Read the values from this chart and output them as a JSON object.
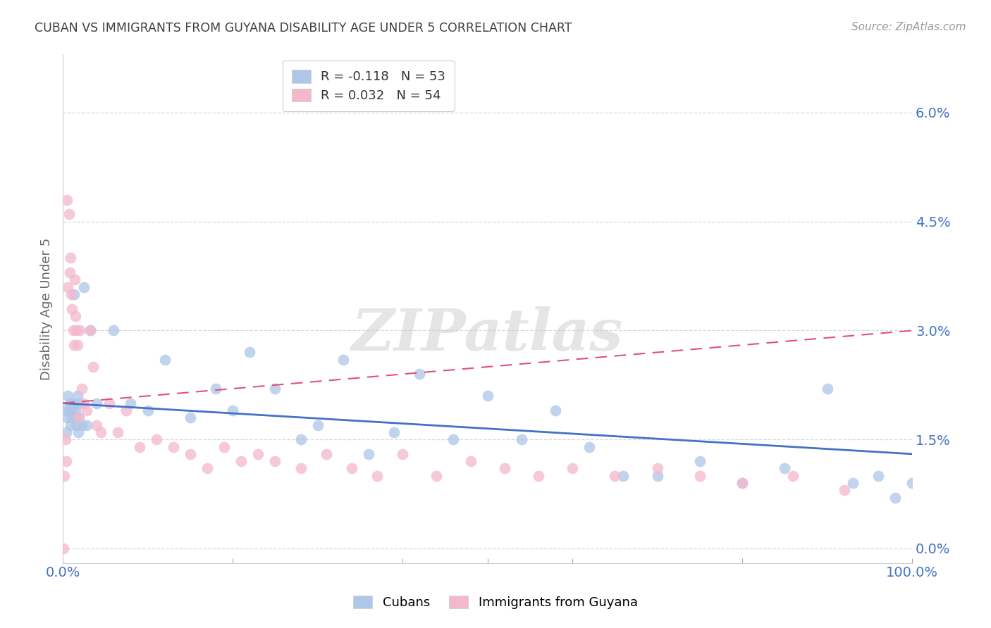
{
  "title": "CUBAN VS IMMIGRANTS FROM GUYANA DISABILITY AGE UNDER 5 CORRELATION CHART",
  "source": "Source: ZipAtlas.com",
  "ylabel": "Disability Age Under 5",
  "xlim": [
    0,
    1.0
  ],
  "ylim": [
    -0.002,
    0.068
  ],
  "yticks": [
    0.0,
    0.015,
    0.03,
    0.045,
    0.06
  ],
  "ytick_labels": [
    "0.0%",
    "1.5%",
    "3.0%",
    "4.5%",
    "6.0%"
  ],
  "cubans_R": -0.118,
  "cubans_N": 53,
  "guyana_R": 0.032,
  "guyana_N": 54,
  "cubans_color": "#aec6e8",
  "guyana_color": "#f4b8cb",
  "cubans_line_color": "#4472c4",
  "guyana_line_color": "#e05080",
  "title_color": "#404040",
  "tick_color": "#4472c4",
  "grid_color": "#d8d8d8",
  "watermark": "ZIPatlas",
  "legend_label_cubans": "Cubans",
  "legend_label_guyana": "Immigrants from Guyana",
  "cubans_line_x0": 0.0,
  "cubans_line_y0": 0.02,
  "cubans_line_x1": 1.0,
  "cubans_line_y1": 0.013,
  "guyana_line_x0": 0.0,
  "guyana_line_y0": 0.02,
  "guyana_line_x1": 1.0,
  "guyana_line_y1": 0.03,
  "cubans_x": [
    0.002,
    0.004,
    0.005,
    0.006,
    0.007,
    0.008,
    0.009,
    0.01,
    0.011,
    0.012,
    0.013,
    0.014,
    0.015,
    0.016,
    0.017,
    0.018,
    0.019,
    0.02,
    0.022,
    0.025,
    0.028,
    0.032,
    0.04,
    0.06,
    0.08,
    0.1,
    0.12,
    0.15,
    0.18,
    0.2,
    0.22,
    0.25,
    0.28,
    0.3,
    0.33,
    0.36,
    0.39,
    0.42,
    0.46,
    0.5,
    0.54,
    0.58,
    0.62,
    0.66,
    0.7,
    0.75,
    0.8,
    0.85,
    0.9,
    0.93,
    0.96,
    0.98,
    1.0
  ],
  "cubans_y": [
    0.019,
    0.016,
    0.018,
    0.021,
    0.019,
    0.02,
    0.017,
    0.018,
    0.019,
    0.02,
    0.035,
    0.018,
    0.019,
    0.017,
    0.021,
    0.016,
    0.018,
    0.02,
    0.017,
    0.036,
    0.017,
    0.03,
    0.02,
    0.03,
    0.02,
    0.019,
    0.026,
    0.018,
    0.022,
    0.019,
    0.027,
    0.022,
    0.015,
    0.017,
    0.026,
    0.013,
    0.016,
    0.024,
    0.015,
    0.021,
    0.015,
    0.019,
    0.014,
    0.01,
    0.01,
    0.012,
    0.009,
    0.011,
    0.022,
    0.009,
    0.01,
    0.007,
    0.009
  ],
  "guyana_x": [
    0.001,
    0.002,
    0.003,
    0.004,
    0.005,
    0.006,
    0.007,
    0.008,
    0.009,
    0.01,
    0.011,
    0.012,
    0.013,
    0.014,
    0.015,
    0.016,
    0.017,
    0.018,
    0.02,
    0.022,
    0.025,
    0.028,
    0.032,
    0.036,
    0.04,
    0.045,
    0.055,
    0.065,
    0.075,
    0.09,
    0.11,
    0.13,
    0.15,
    0.17,
    0.19,
    0.21,
    0.23,
    0.25,
    0.28,
    0.31,
    0.34,
    0.37,
    0.4,
    0.44,
    0.48,
    0.52,
    0.56,
    0.6,
    0.65,
    0.7,
    0.75,
    0.8,
    0.86,
    0.92
  ],
  "guyana_y": [
    0.0,
    0.01,
    0.015,
    0.012,
    0.048,
    0.036,
    0.046,
    0.038,
    0.04,
    0.035,
    0.033,
    0.03,
    0.028,
    0.037,
    0.032,
    0.03,
    0.028,
    0.018,
    0.03,
    0.022,
    0.02,
    0.019,
    0.03,
    0.025,
    0.017,
    0.016,
    0.02,
    0.016,
    0.019,
    0.014,
    0.015,
    0.014,
    0.013,
    0.011,
    0.014,
    0.012,
    0.013,
    0.012,
    0.011,
    0.013,
    0.011,
    0.01,
    0.013,
    0.01,
    0.012,
    0.011,
    0.01,
    0.011,
    0.01,
    0.011,
    0.01,
    0.009,
    0.01,
    0.008
  ]
}
